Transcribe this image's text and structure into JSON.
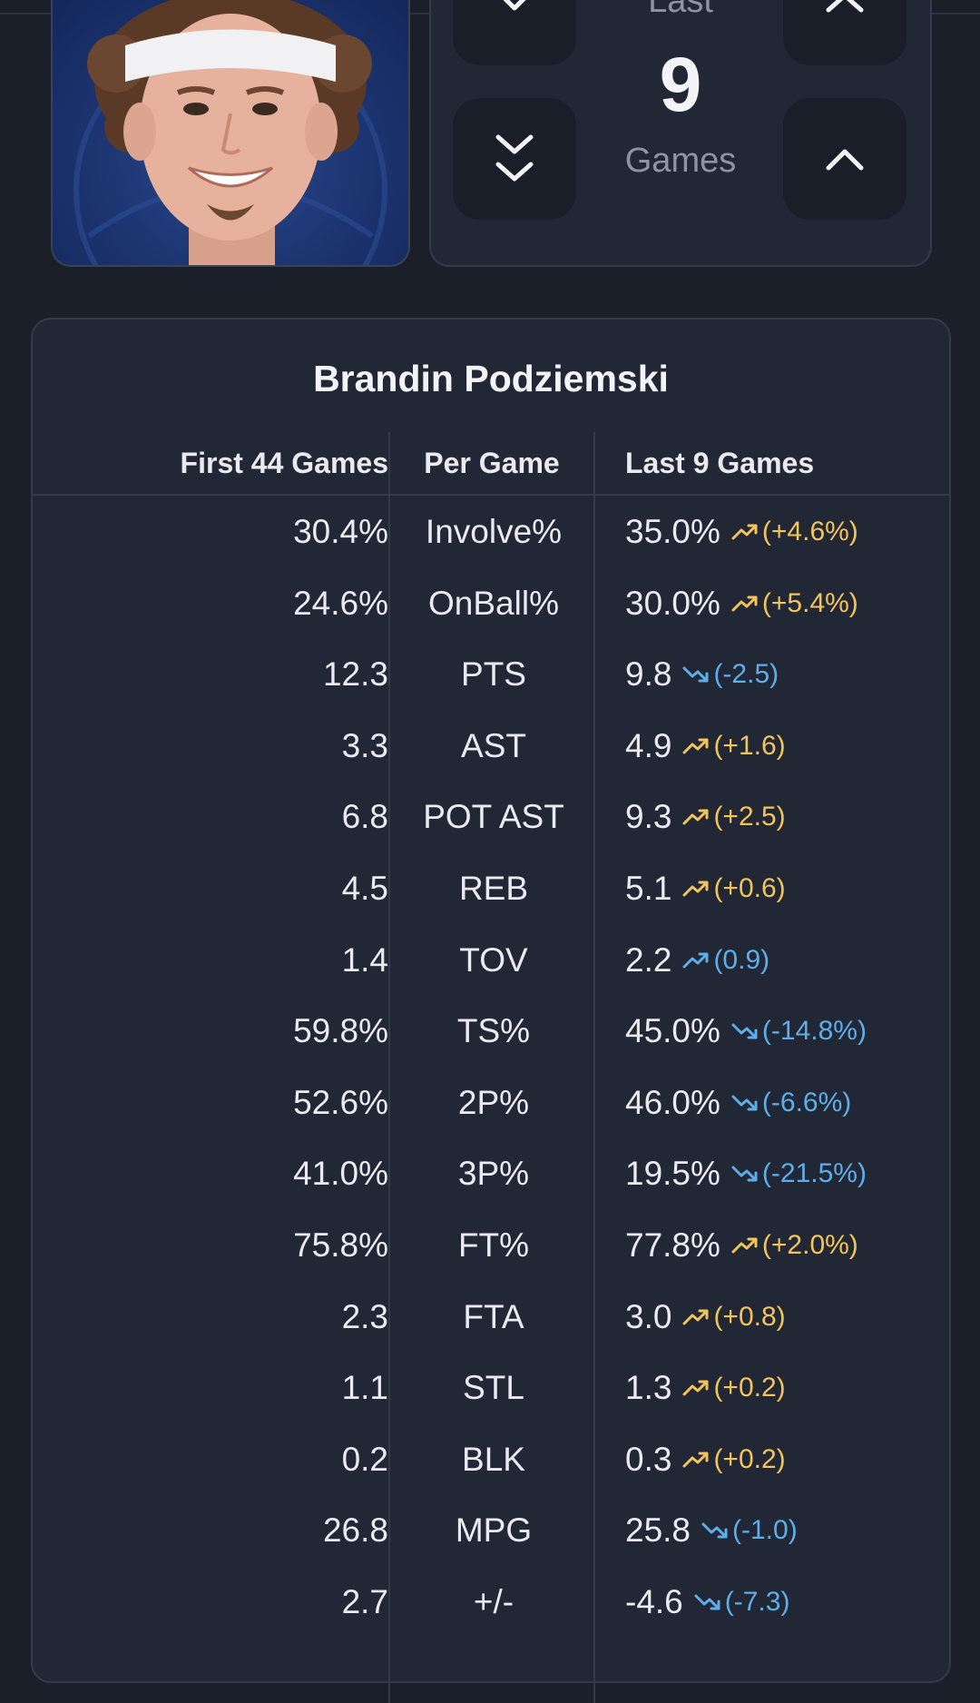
{
  "selector": {
    "label_top": "Last",
    "value": "9",
    "label": "Games"
  },
  "card": {
    "player_name": "Brandin Podziemski",
    "headers": {
      "first": "First 44 Games",
      "label": "Per Game",
      "last": "Last 9 Games"
    }
  },
  "rows": [
    {
      "first": "30.4%",
      "label": "Involve%",
      "last": "35.0%",
      "delta": "(+4.6%)",
      "trend": "up",
      "color": "up"
    },
    {
      "first": "24.6%",
      "label": "OnBall%",
      "last": "30.0%",
      "delta": "(+5.4%)",
      "trend": "up",
      "color": "up"
    },
    {
      "first": "12.3",
      "label": "PTS",
      "last": "9.8",
      "delta": "(-2.5)",
      "trend": "down",
      "color": "down"
    },
    {
      "first": "3.3",
      "label": "AST",
      "last": "4.9",
      "delta": "(+1.6)",
      "trend": "up",
      "color": "up"
    },
    {
      "first": "6.8",
      "label": "POT AST",
      "last": "9.3",
      "delta": "(+2.5)",
      "trend": "up",
      "color": "up"
    },
    {
      "first": "4.5",
      "label": "REB",
      "last": "5.1",
      "delta": "(+0.6)",
      "trend": "up",
      "color": "up"
    },
    {
      "first": "1.4",
      "label": "TOV",
      "last": "2.2",
      "delta": "(0.9)",
      "trend": "up",
      "color": "down"
    },
    {
      "first": "59.8%",
      "label": "TS%",
      "last": "45.0%",
      "delta": "(-14.8%)",
      "trend": "down",
      "color": "down"
    },
    {
      "first": "52.6%",
      "label": "2P%",
      "last": "46.0%",
      "delta": "(-6.6%)",
      "trend": "down",
      "color": "down"
    },
    {
      "first": "41.0%",
      "label": "3P%",
      "last": "19.5%",
      "delta": "(-21.5%)",
      "trend": "down",
      "color": "down"
    },
    {
      "first": "75.8%",
      "label": "FT%",
      "last": "77.8%",
      "delta": "(+2.0%)",
      "trend": "up",
      "color": "up"
    },
    {
      "first": "2.3",
      "label": "FTA",
      "last": "3.0",
      "delta": "(+0.8)",
      "trend": "up",
      "color": "up"
    },
    {
      "first": "1.1",
      "label": "STL",
      "last": "1.3",
      "delta": "(+0.2)",
      "trend": "up",
      "color": "up"
    },
    {
      "first": "0.2",
      "label": "BLK",
      "last": "0.3",
      "delta": "(+0.2)",
      "trend": "up",
      "color": "up"
    },
    {
      "first": "26.8",
      "label": "MPG",
      "last": "25.8",
      "delta": "(-1.0)",
      "trend": "down",
      "color": "down"
    },
    {
      "first": "2.7",
      "label": "+/-",
      "last": "-4.6",
      "delta": "(-7.3)",
      "trend": "down",
      "color": "down"
    }
  ],
  "colors": {
    "up": "#f2c45a",
    "down": "#5eaeea",
    "background": "#1b1f2a",
    "card": "#222735"
  },
  "icons": {
    "trend_up": "trending-up-icon",
    "trend_down": "trending-down-icon",
    "decrease_one": "chevron-down-icon",
    "decrease_many": "double-chevron-down-icon",
    "increase_one": "chevron-up-icon",
    "increase_many": "chevron-up-icon"
  }
}
